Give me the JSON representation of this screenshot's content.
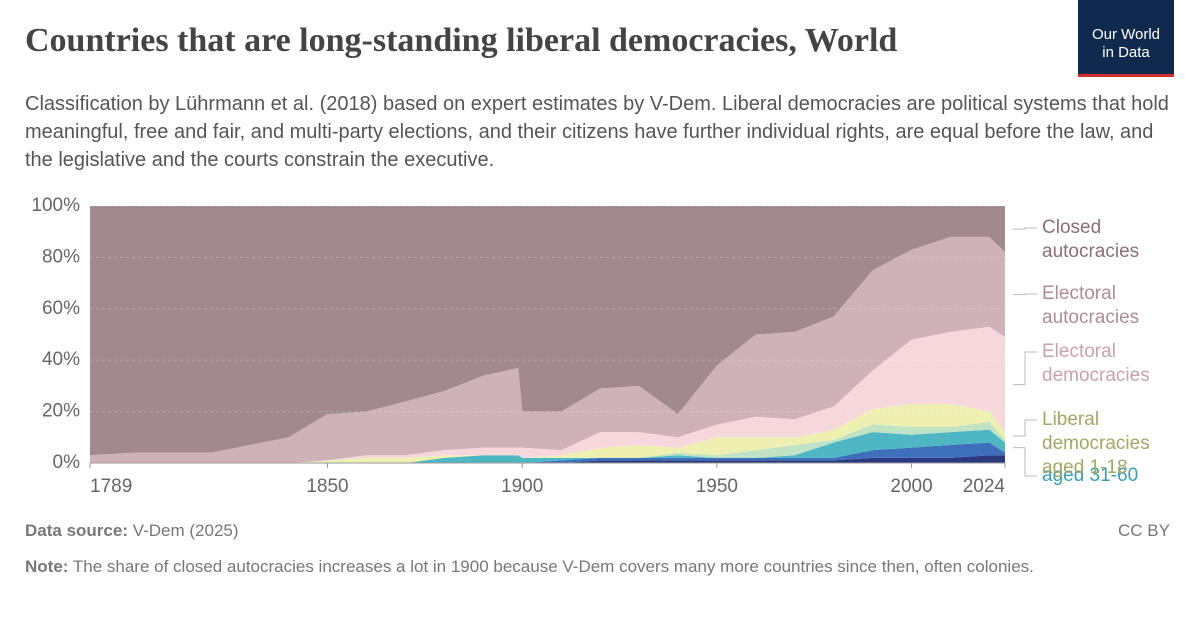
{
  "chart_data": {
    "type": "stacked_area",
    "title": "Countries that are long-standing liberal democracies, World",
    "subtitle": "Classification by Lührmann et al. (2018) based on expert estimates by V-Dem. Liberal democracies are political systems that hold meaningful, free and fair, and multi-party elections, and their citizens have further individual rights, are equal before the law, and the legislative and the courts constrain the executive.",
    "logo": "Our World in Data",
    "source_label": "Data source:",
    "source": "V-Dem (2025)",
    "license": "CC BY",
    "note_label": "Note:",
    "note": "The share of closed autocracies increases a lot in 1900 because V-Dem covers many more countries since then, often colonies.",
    "x": [
      1789,
      1800,
      1810,
      1820,
      1830,
      1840,
      1850,
      1860,
      1870,
      1880,
      1890,
      1899,
      1900,
      1910,
      1920,
      1930,
      1940,
      1950,
      1960,
      1970,
      1980,
      1990,
      2000,
      2010,
      2020,
      2024
    ],
    "xlim": [
      1789,
      2024
    ],
    "xticks": [
      1789,
      1850,
      1900,
      1950,
      2000,
      2024
    ],
    "ylim": [
      0,
      100
    ],
    "yticks": [
      {
        "value": 0,
        "label": "0%"
      },
      {
        "value": 20,
        "label": "20%"
      },
      {
        "value": 40,
        "label": "40%"
      },
      {
        "value": 60,
        "label": "60%"
      },
      {
        "value": 80,
        "label": "80%"
      },
      {
        "value": 100,
        "label": "100%"
      }
    ],
    "grid": true,
    "series": [
      {
        "color": "#2b3a80",
        "values": [
          0,
          0,
          0,
          0,
          0,
          0,
          0,
          0,
          0,
          0,
          0,
          0,
          0,
          0,
          1,
          1,
          1,
          1,
          1,
          1,
          1,
          2,
          2,
          2,
          3,
          3
        ]
      },
      {
        "color": "#3e6fbb",
        "values": [
          0,
          0,
          0,
          0,
          0,
          0,
          0,
          0,
          0,
          0,
          0,
          0,
          0,
          1,
          1,
          1,
          1,
          1,
          1,
          1,
          1,
          3,
          4,
          5,
          5,
          1
        ]
      },
      {
        "name": "aged 31-60",
        "color": "#4fb6c4",
        "label_color": "#3a9fb0",
        "values": [
          0,
          0,
          0,
          0,
          0,
          0,
          0,
          0,
          0,
          2,
          3,
          3,
          2,
          1,
          0,
          0,
          1,
          0,
          0,
          1,
          6,
          7,
          5,
          5,
          5,
          4
        ]
      },
      {
        "color": "#bfe3c4",
        "values": [
          0,
          0,
          0,
          0,
          0,
          0,
          0,
          0,
          0,
          0,
          0,
          0,
          0,
          0,
          0,
          0,
          1,
          1,
          3,
          4,
          1,
          3,
          3,
          2,
          3,
          1
        ]
      },
      {
        "name": "Liberal democracies aged 1-18",
        "color": "#eef0b2",
        "label_color": "#a3a866",
        "values": [
          0,
          0,
          0,
          0,
          0,
          0,
          1,
          2,
          2,
          1,
          0,
          0,
          0,
          1,
          4,
          5,
          2,
          7,
          5,
          3,
          4,
          6,
          9,
          9,
          4,
          3
        ]
      },
      {
        "name": "Electoral democracies",
        "color": "#f6d7dc",
        "label_color": "#c9a3ab",
        "values": [
          0,
          0,
          0,
          0,
          0,
          0,
          0,
          1,
          1,
          2,
          3,
          3,
          4,
          2,
          6,
          5,
          4,
          5,
          8,
          7,
          9,
          15,
          25,
          28,
          33,
          37
        ]
      },
      {
        "name": "Electoral autocracies",
        "color": "#cfb2b8",
        "label_color": "#ad8d94",
        "values": [
          3,
          4,
          4,
          4,
          7,
          10,
          18,
          17,
          21,
          23,
          28,
          31,
          14,
          15,
          17,
          18,
          9,
          23,
          32,
          34,
          35,
          39,
          35,
          37,
          35,
          33
        ]
      },
      {
        "name": "Closed autocracies",
        "color": "#a08a8e",
        "label_color": "#8a6f74",
        "values": [
          97,
          96,
          96,
          96,
          93,
          90,
          81,
          80,
          76,
          72,
          66,
          63,
          80,
          80,
          71,
          70,
          81,
          62,
          50,
          49,
          43,
          25,
          17,
          12,
          12,
          18
        ]
      }
    ]
  }
}
